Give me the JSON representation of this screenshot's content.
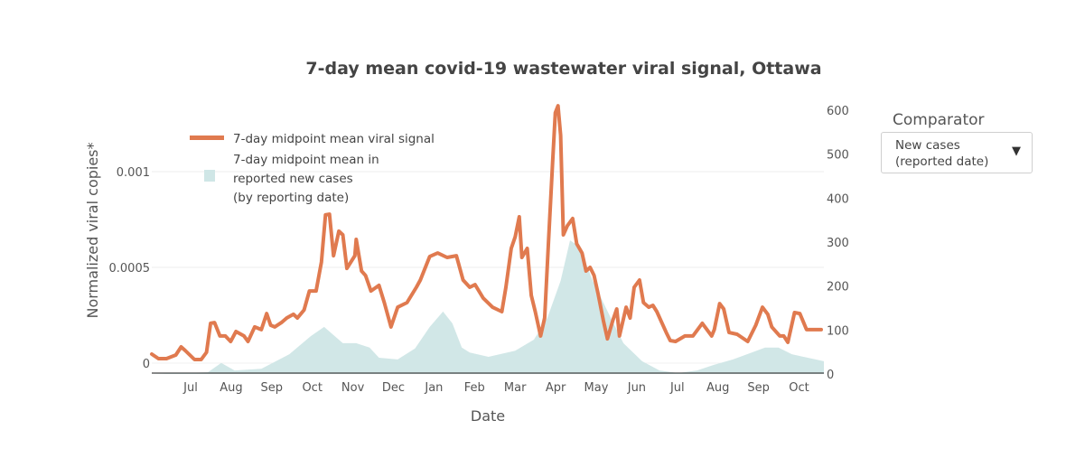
{
  "chart_data": {
    "type": "line",
    "title": "7-day mean covid-19 wastewater viral signal, Ottawa",
    "xlabel": "Date",
    "ylabel": "Normalized viral copies*",
    "y2label": "",
    "x_ticks": [
      "Jul",
      "Aug",
      "Sep",
      "Oct",
      "Nov",
      "Dec",
      "Jan",
      "Feb",
      "Mar",
      "Apr",
      "May",
      "Jun",
      "Jul",
      "Aug",
      "Sep",
      "Oct"
    ],
    "y_ticks": [
      "0",
      "0.0005",
      "0.001"
    ],
    "y_tick_values": [
      0,
      0.0005,
      0.001
    ],
    "y2_ticks": [
      "0",
      "100",
      "200",
      "300",
      "400",
      "500",
      "600"
    ],
    "y2_tick_values": [
      0,
      100,
      200,
      300,
      400,
      500,
      600
    ],
    "ylim": [
      -5e-05,
      0.00142
    ],
    "y2lim": [
      0,
      620
    ],
    "x_unit": "days since start of series (mid-June, year 1)",
    "xlim": [
      0,
      503
    ],
    "grid": true,
    "legend_position": "top-left",
    "series": [
      {
        "name": "7-day midpoint mean viral signal",
        "axis": "left",
        "kind": "line",
        "color": "#e07a4f",
        "x": [
          0,
          5,
          11,
          18,
          22,
          25,
          32,
          37,
          41,
          44,
          47,
          51,
          55,
          59,
          63,
          69,
          72,
          77,
          82,
          86,
          89,
          92,
          97,
          101,
          106,
          109,
          114,
          118,
          123,
          127,
          130,
          133,
          136,
          140,
          143,
          146,
          152,
          153,
          157,
          160,
          164,
          170,
          174,
          179,
          184,
          191,
          198,
          201,
          208,
          214,
          221,
          228,
          233,
          238,
          242,
          248,
          255,
          262,
          265,
          269,
          272,
          275,
          277,
          281,
          284,
          287,
          291,
          294,
          297,
          300,
          302,
          304,
          306,
          308,
          311,
          315,
          318,
          322,
          325,
          328,
          331,
          334,
          338,
          341,
          345,
          348,
          350,
          355,
          358,
          361,
          365,
          368,
          372,
          375,
          378,
          385,
          388,
          392,
          399,
          405,
          412,
          419,
          421,
          425,
          428,
          432,
          438,
          446,
          452,
          457,
          461,
          464,
          470,
          473,
          476,
          481,
          485,
          490,
          496,
          501
        ],
        "values": [
          4.72e-05,
          2.36e-05,
          2.36e-05,
          4.25e-05,
          8.49e-05,
          6.6e-05,
          1.89e-05,
          1.89e-05,
          5.66e-05,
          0.000208,
          0.000212,
          0.000142,
          0.000142,
          0.000113,
          0.000165,
          0.000142,
          0.000113,
          0.000189,
          0.000175,
          0.000259,
          0.000198,
          0.000189,
          0.000212,
          0.000236,
          0.000255,
          0.000236,
          0.000278,
          0.000377,
          0.000377,
          0.000528,
          0.000774,
          0.000778,
          0.000561,
          0.000689,
          0.00067,
          0.000495,
          0.000561,
          0.000646,
          0.000481,
          0.000457,
          0.000377,
          0.000406,
          0.000316,
          0.000189,
          0.000292,
          0.000316,
          0.000396,
          0.000434,
          0.000557,
          0.000575,
          0.000552,
          0.000561,
          0.000434,
          0.000396,
          0.00041,
          0.00034,
          0.000292,
          0.000269,
          0.000396,
          0.000599,
          0.00066,
          0.000764,
          0.000552,
          0.000599,
          0.000354,
          0.000269,
          0.000142,
          0.000236,
          0.000646,
          0.001047,
          0.001307,
          0.001344,
          0.001189,
          0.00067,
          0.000717,
          0.000755,
          0.000623,
          0.000575,
          0.000481,
          0.0005,
          0.000458,
          0.000363,
          0.000222,
          0.000127,
          0.000222,
          0.000283,
          0.000142,
          0.000292,
          0.000236,
          0.000396,
          0.000434,
          0.000316,
          0.000292,
          0.000302,
          0.000269,
          0.00016,
          0.000118,
          0.000113,
          0.000142,
          0.000142,
          0.000208,
          0.000142,
          0.000175,
          0.000311,
          0.000283,
          0.00016,
          0.000151,
          0.000113,
          0.000198,
          0.000292,
          0.000255,
          0.000189,
          0.000142,
          0.000142,
          0.000109,
          0.000264,
          0.000259,
          0.000175,
          0.000175,
          0.000175
        ]
      },
      {
        "name": "7-day midpoint mean in reported new cases (by reporting date)",
        "axis": "right",
        "kind": "area",
        "color": "#cfe6e6",
        "x": [
          0,
          42,
          52,
          62,
          82,
          103,
          119,
          129,
          143,
          153,
          163,
          170,
          184,
          197,
          208,
          218,
          225,
          232,
          238,
          252,
          272,
          286,
          296,
          306,
          313,
          320,
          330,
          343,
          353,
          367,
          380,
          394,
          408,
          421,
          435,
          449,
          459,
          469,
          479,
          503
        ],
        "values": [
          0,
          4,
          25,
          8,
          12,
          45,
          86,
          107,
          70,
          70,
          60,
          37,
          33,
          58,
          107,
          142,
          115,
          60,
          49,
          39,
          53,
          78,
          127,
          212,
          304,
          290,
          212,
          131,
          70,
          29,
          8,
          2,
          8,
          21,
          33,
          49,
          60,
          60,
          45,
          29
        ]
      }
    ]
  },
  "legend": {
    "line_label": "7-day midpoint mean viral signal",
    "area_label_lines": [
      "7-day midpoint mean in",
      "reported new cases",
      "(by reporting date)"
    ]
  },
  "comparator": {
    "label": "Comparator",
    "selected_lines": [
      "New cases",
      "(reported date)"
    ],
    "caret": "▼"
  }
}
